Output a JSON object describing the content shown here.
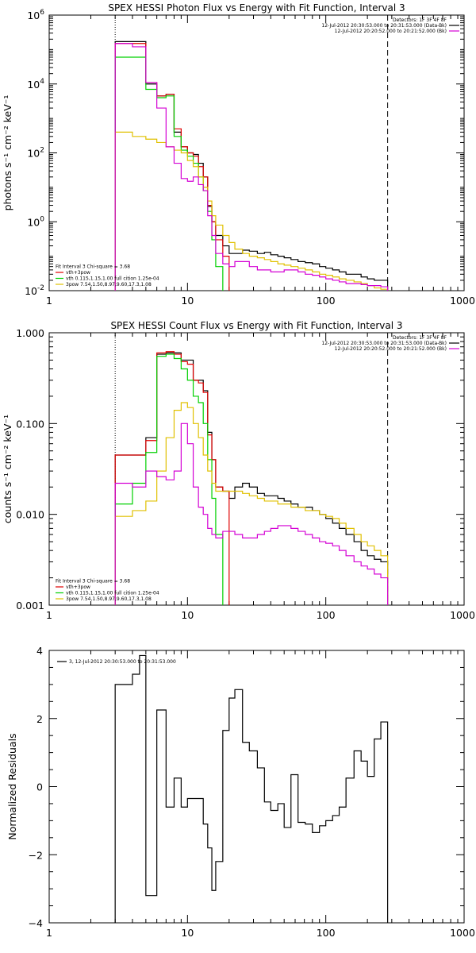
{
  "chart_data": [
    {
      "type": "line",
      "title": "SPEX HESSI Photon Flux vs Energy with Fit Function, Interval 3",
      "ylabel": "photons s⁻¹ cm⁻² keV⁻¹",
      "xlabel": "",
      "x_scale": "log",
      "y_scale": "log",
      "xlim": [
        1,
        1000
      ],
      "ylim": [
        0.01,
        1000000
      ],
      "x_tick_labels": [
        "1",
        "10",
        "100",
        "1000"
      ],
      "y_ticks": [
        {
          "base": "10",
          "exp": "-2",
          "value": 0.01
        },
        {
          "base": "10",
          "exp": "0",
          "value": 1
        },
        {
          "base": "10",
          "exp": "2",
          "value": 100
        },
        {
          "base": "10",
          "exp": "4",
          "value": 10000
        },
        {
          "base": "10",
          "exp": "6",
          "value": 1000000
        }
      ],
      "legend_top": [
        {
          "text": "Detectors: 1F 3F 4F 8F"
        },
        {
          "text": "12-Jul-2012 20:30:53.000 to 20:31:53.000 (Data-Bk)",
          "color": "#000000"
        },
        {
          "text": "12-Jul-2012 20:20:52.000 to 20:21:52.000 (Bk)",
          "color": "#d400d4"
        }
      ],
      "legend_bottom": [
        {
          "text": "Fit Interval 3   Chi-square = 3.68"
        },
        {
          "text": "vth+3pow",
          "color": "#e00000"
        },
        {
          "text": "vth 0.115,1.15,1.00  full cition 1.25e-04",
          "color": "#00d000"
        },
        {
          "text": "3pow 7.54,1.50,8.97,9.60,17.3,1.08",
          "color": "#e0c000"
        }
      ],
      "vlines": [
        {
          "x": 3,
          "style": "dotted"
        },
        {
          "x": 280,
          "style": "dashed"
        }
      ],
      "series": [
        {
          "name": "12-Jul-2012 20:30:53.000 to 20:31:53.000 (Data-Bk)",
          "color": "#000000",
          "edges": [
            3,
            4,
            5,
            6,
            7,
            8,
            9,
            10,
            11,
            12,
            13,
            14,
            15,
            16,
            18,
            20,
            22,
            25,
            28,
            32,
            36,
            40,
            45,
            50,
            56,
            63,
            71,
            80,
            90,
            100,
            112,
            125,
            140,
            160,
            180,
            200,
            224,
            250,
            280
          ],
          "values": [
            170000,
            170000,
            10000,
            4500,
            5000,
            400,
            150,
            100,
            90,
            50,
            20,
            2.8,
            1,
            0.4,
            0.2,
            0.12,
            0.12,
            0.15,
            0.14,
            0.12,
            0.13,
            0.11,
            0.1,
            0.09,
            0.08,
            0.07,
            0.065,
            0.06,
            0.05,
            0.045,
            0.04,
            0.035,
            0.03,
            0.03,
            0.025,
            0.022,
            0.02,
            0.02
          ]
        },
        {
          "name": "vth+3pow",
          "color": "#e00000",
          "edges": [
            3,
            4,
            5,
            6,
            7,
            8,
            9,
            10,
            11,
            12,
            13,
            14,
            15,
            16,
            18,
            20
          ],
          "values": [
            150000,
            150000,
            11000,
            4500,
            5000,
            500,
            150,
            100,
            80,
            40,
            20,
            3,
            1,
            0.3,
            0.1
          ]
        },
        {
          "name": "vth 0.115,1.15,1.00  full cition 1.25e-04",
          "color": "#00d000",
          "edges": [
            3,
            4,
            5,
            6,
            7,
            8,
            9,
            10,
            11,
            12,
            13,
            14,
            15,
            16,
            18
          ],
          "values": [
            60000,
            60000,
            7000,
            4000,
            4500,
            300,
            120,
            80,
            50,
            20,
            8,
            2,
            0.3,
            0.05
          ]
        },
        {
          "name": "3pow 7.54,1.50,8.97,9.60,17.3,1.08",
          "color": "#e0c000",
          "edges": [
            3,
            4,
            5,
            6,
            7,
            8,
            9,
            10,
            11,
            12,
            13,
            14,
            15,
            16,
            18,
            20,
            22,
            25,
            28,
            32,
            36,
            40,
            45,
            50,
            56,
            63,
            71,
            80,
            90,
            100,
            112,
            125,
            140,
            160,
            180,
            200,
            224,
            250,
            280
          ],
          "values": [
            400,
            300,
            250,
            200,
            150,
            120,
            100,
            60,
            40,
            20,
            10,
            4,
            1.5,
            0.8,
            0.4,
            0.25,
            0.16,
            0.12,
            0.1,
            0.09,
            0.08,
            0.07,
            0.06,
            0.055,
            0.05,
            0.045,
            0.04,
            0.035,
            0.03,
            0.028,
            0.025,
            0.022,
            0.02,
            0.018,
            0.016,
            0.014,
            0.012,
            0.011
          ]
        },
        {
          "name": "12-Jul-2012 20:20:52.000 to 20:21:52.000 (Bk)",
          "color": "#d400d4",
          "edges": [
            3,
            4,
            5,
            6,
            7,
            8,
            9,
            10,
            11,
            12,
            13,
            14,
            15,
            16,
            18,
            20,
            22,
            25,
            28,
            32,
            36,
            40,
            45,
            50,
            56,
            63,
            71,
            80,
            90,
            100,
            112,
            125,
            140,
            160,
            180,
            200,
            224,
            250,
            280
          ],
          "values": [
            150000,
            120000,
            11000,
            2000,
            150,
            50,
            18,
            15,
            20,
            12,
            8,
            1.5,
            0.4,
            0.12,
            0.06,
            0.05,
            0.07,
            0.07,
            0.05,
            0.04,
            0.04,
            0.035,
            0.035,
            0.04,
            0.04,
            0.035,
            0.03,
            0.028,
            0.025,
            0.022,
            0.02,
            0.018,
            0.016,
            0.016,
            0.015,
            0.014,
            0.014,
            0.013
          ]
        }
      ]
    },
    {
      "type": "line",
      "title": "SPEX HESSI Count Flux vs Energy with Fit Function, Interval 3",
      "ylabel": "counts s⁻¹ cm⁻² keV⁻¹",
      "xlabel": "",
      "x_scale": "log",
      "y_scale": "log",
      "xlim": [
        1,
        1000
      ],
      "ylim": [
        0.001,
        1.0
      ],
      "x_tick_labels": [
        "1",
        "10",
        "100",
        "1000"
      ],
      "y_tick_labels": [
        "0.001",
        "0.010",
        "0.100",
        "1.000"
      ],
      "legend_top": [
        {
          "text": "Detectors: 1F 3F 4F 8F"
        },
        {
          "text": "12-Jul-2012 20:30:53.000 to 20:31:53.000 (Data-Bk)",
          "color": "#000000"
        },
        {
          "text": "12-Jul-2012 20:20:52.000 to 20:21:52.000 (Bk)",
          "color": "#d400d4"
        }
      ],
      "legend_bottom": [
        {
          "text": "Fit Interval 3   Chi-square = 3.68"
        },
        {
          "text": "vth+3pow",
          "color": "#e00000"
        },
        {
          "text": "vth 0.115,1.15,1.00  full cition 1.25e-04",
          "color": "#00d000"
        },
        {
          "text": "3pow 7.54,1.50,8.97,9.60,17.3,1.08",
          "color": "#e0c000"
        }
      ],
      "vlines": [
        {
          "x": 3,
          "style": "dotted"
        },
        {
          "x": 280,
          "style": "dashed"
        }
      ],
      "series": [
        {
          "name": "12-Jul-2012 20:30:53.000 to 20:31:53.000 (Data-Bk)",
          "color": "#000000",
          "edges": [
            3,
            4,
            5,
            6,
            7,
            8,
            9,
            10,
            11,
            12,
            13,
            14,
            15,
            16,
            18,
            20,
            22,
            25,
            28,
            32,
            36,
            40,
            45,
            50,
            56,
            63,
            71,
            80,
            90,
            100,
            112,
            125,
            140,
            160,
            180,
            200,
            224,
            250,
            280
          ],
          "values": [
            0.045,
            0.045,
            0.07,
            0.58,
            0.6,
            0.6,
            0.5,
            0.5,
            0.3,
            0.3,
            0.23,
            0.08,
            0.04,
            0.02,
            0.018,
            0.015,
            0.02,
            0.022,
            0.02,
            0.017,
            0.016,
            0.016,
            0.015,
            0.014,
            0.013,
            0.012,
            0.012,
            0.011,
            0.01,
            0.009,
            0.008,
            0.007,
            0.006,
            0.005,
            0.004,
            0.0035,
            0.0032,
            0.003
          ]
        },
        {
          "name": "vth+3pow",
          "color": "#e00000",
          "edges": [
            3,
            4,
            5,
            6,
            7,
            8,
            9,
            10,
            11,
            12,
            13,
            14,
            15,
            16,
            18,
            20
          ],
          "values": [
            0.045,
            0.045,
            0.065,
            0.6,
            0.62,
            0.58,
            0.48,
            0.45,
            0.3,
            0.28,
            0.22,
            0.075,
            0.04,
            0.02,
            0.018
          ]
        },
        {
          "name": "vth 0.115,1.15,1.00  full cition 1.25e-04",
          "color": "#00d000",
          "edges": [
            3,
            4,
            5,
            6,
            7,
            8,
            9,
            10,
            11,
            12,
            13,
            14,
            15,
            16,
            18
          ],
          "values": [
            0.013,
            0.022,
            0.048,
            0.55,
            0.58,
            0.52,
            0.4,
            0.3,
            0.2,
            0.17,
            0.1,
            0.04,
            0.015,
            0.006
          ]
        },
        {
          "name": "3pow 7.54,1.50,8.97,9.60,17.3,1.08",
          "color": "#e0c000",
          "edges": [
            3,
            4,
            5,
            6,
            7,
            8,
            9,
            10,
            11,
            12,
            13,
            14,
            15,
            16,
            18,
            20,
            22,
            25,
            28,
            32,
            36,
            40,
            45,
            50,
            56,
            63,
            71,
            80,
            90,
            100,
            112,
            125,
            140,
            160,
            180,
            200,
            224,
            250,
            280
          ],
          "values": [
            0.0095,
            0.011,
            0.014,
            0.03,
            0.07,
            0.14,
            0.17,
            0.15,
            0.1,
            0.07,
            0.045,
            0.03,
            0.022,
            0.018,
            0.018,
            0.018,
            0.018,
            0.017,
            0.016,
            0.015,
            0.014,
            0.014,
            0.013,
            0.013,
            0.012,
            0.012,
            0.011,
            0.011,
            0.01,
            0.0095,
            0.009,
            0.008,
            0.007,
            0.006,
            0.005,
            0.0045,
            0.004,
            0.0035
          ]
        },
        {
          "name": "12-Jul-2012 20:20:52.000 to 20:21:52.000 (Bk)",
          "color": "#d400d4",
          "edges": [
            3,
            4,
            5,
            6,
            7,
            8,
            9,
            10,
            11,
            12,
            13,
            14,
            15,
            16,
            18,
            20,
            22,
            25,
            28,
            32,
            36,
            40,
            45,
            50,
            56,
            63,
            71,
            80,
            90,
            100,
            112,
            125,
            140,
            160,
            180,
            200,
            224,
            250,
            280
          ],
          "values": [
            0.022,
            0.02,
            0.03,
            0.026,
            0.024,
            0.03,
            0.1,
            0.06,
            0.02,
            0.012,
            0.01,
            0.007,
            0.006,
            0.0055,
            0.0065,
            0.0065,
            0.006,
            0.0055,
            0.0055,
            0.006,
            0.0065,
            0.007,
            0.0075,
            0.0075,
            0.007,
            0.0065,
            0.006,
            0.0055,
            0.005,
            0.0048,
            0.0045,
            0.004,
            0.0035,
            0.003,
            0.0027,
            0.0025,
            0.0022,
            0.002
          ]
        }
      ]
    },
    {
      "type": "line",
      "title": "",
      "ylabel": "Normalized Residuals",
      "xlabel": "",
      "x_scale": "log",
      "y_scale": "linear",
      "xlim": [
        1,
        1000
      ],
      "ylim": [
        -4,
        4
      ],
      "x_tick_labels": [
        "1",
        "10",
        "100",
        "1000"
      ],
      "y_tick_labels": [
        "−4",
        "−2",
        "0",
        "2",
        "4"
      ],
      "legend_top": [
        {
          "text": "3, 12-Jul-2012 20:30:53.000 to 20:31:53.000",
          "color": "#000000"
        }
      ],
      "series": [
        {
          "name": "3, 12-Jul-2012 20:30:53.000 to 20:31:53.000",
          "color": "#000000",
          "edges": [
            3,
            4,
            4.5,
            5,
            6,
            7,
            8,
            9,
            10,
            11,
            12,
            13,
            14,
            15,
            16,
            18,
            20,
            22,
            25,
            28,
            32,
            36,
            40,
            45,
            50,
            56,
            63,
            71,
            80,
            90,
            100,
            112,
            125,
            140,
            160,
            180,
            200,
            224,
            250,
            280
          ],
          "values": [
            3.0,
            3.3,
            3.85,
            -3.2,
            2.25,
            -0.6,
            0.25,
            -0.6,
            -0.35,
            -0.35,
            -0.35,
            -1.1,
            -1.8,
            -3.05,
            -2.2,
            1.65,
            2.6,
            2.85,
            1.3,
            1.05,
            0.55,
            -0.45,
            -0.7,
            -0.5,
            -1.2,
            0.35,
            -1.05,
            -1.1,
            -1.35,
            -1.15,
            -1.0,
            -0.85,
            -0.6,
            0.25,
            1.05,
            0.75,
            0.3,
            1.4,
            1.9
          ]
        }
      ]
    }
  ]
}
